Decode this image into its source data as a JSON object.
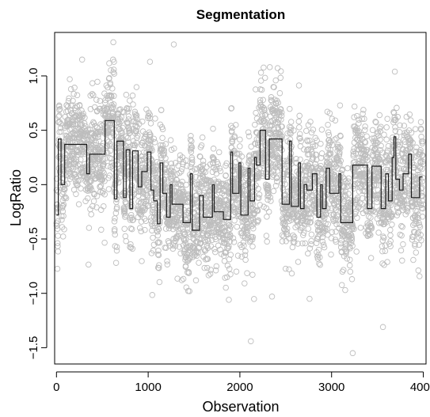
{
  "chart_data": {
    "type": "scatter",
    "title": "Segmentation",
    "xlabel": "Observation",
    "ylabel": "LogRatio",
    "xlim": [
      -20,
      4030
    ],
    "ylim": [
      -1.65,
      1.4
    ],
    "xticks": [
      0,
      1000,
      2000,
      3000,
      4000
    ],
    "yticks": [
      -1.5,
      -1.0,
      -0.5,
      0.0,
      0.5,
      1.0
    ],
    "xtick_labels": [
      "0",
      "1000",
      "2000",
      "3000",
      "4000"
    ],
    "ytick_labels": [
      "−1.5",
      "−1.0",
      "−0.5",
      "0.0",
      "0.5",
      "1.0"
    ],
    "grid": false,
    "point_color": "#bdbdbd",
    "segment_color": "#1a1a1a",
    "series": [
      {
        "type": "scatter",
        "n_points": 4000,
        "outliers": [
          {
            "x": 620,
            "y": 1.31
          },
          {
            "x": 1280,
            "y": 1.29
          },
          {
            "x": 1020,
            "y": 1.13
          },
          {
            "x": 2120,
            "y": -1.44
          },
          {
            "x": 3230,
            "y": -1.55
          },
          {
            "x": 3560,
            "y": -1.31
          },
          {
            "x": 2760,
            "y": -1.05
          },
          {
            "x": 1880,
            "y": -1.06
          },
          {
            "x": 3690,
            "y": 1.04
          },
          {
            "x": 2230,
            "y": 1.03
          },
          {
            "x": 280,
            "y": 1.15
          },
          {
            "x": 1450,
            "y": -0.98
          },
          {
            "x": 650,
            "y": -0.72
          },
          {
            "x": 2350,
            "y": -1.03
          }
        ]
      },
      {
        "type": "segments",
        "segments": [
          {
            "x0": 0,
            "x1": 20,
            "y": -0.28
          },
          {
            "x0": 20,
            "x1": 50,
            "y": 0.42
          },
          {
            "x0": 50,
            "x1": 90,
            "y": 0.0
          },
          {
            "x0": 90,
            "x1": 330,
            "y": 0.37
          },
          {
            "x0": 330,
            "x1": 360,
            "y": 0.1
          },
          {
            "x0": 360,
            "x1": 530,
            "y": 0.28
          },
          {
            "x0": 530,
            "x1": 630,
            "y": 0.59
          },
          {
            "x0": 630,
            "x1": 660,
            "y": -0.13
          },
          {
            "x0": 660,
            "x1": 730,
            "y": 0.4
          },
          {
            "x0": 730,
            "x1": 760,
            "y": -0.12
          },
          {
            "x0": 760,
            "x1": 800,
            "y": 0.32
          },
          {
            "x0": 800,
            "x1": 830,
            "y": -0.22
          },
          {
            "x0": 830,
            "x1": 890,
            "y": 0.31
          },
          {
            "x0": 890,
            "x1": 930,
            "y": -0.02
          },
          {
            "x0": 930,
            "x1": 990,
            "y": 0.12
          },
          {
            "x0": 990,
            "x1": 1030,
            "y": 0.3
          },
          {
            "x0": 1030,
            "x1": 1060,
            "y": -0.05
          },
          {
            "x0": 1060,
            "x1": 1100,
            "y": -0.15
          },
          {
            "x0": 1100,
            "x1": 1130,
            "y": -0.36
          },
          {
            "x0": 1130,
            "x1": 1160,
            "y": 0.2
          },
          {
            "x0": 1160,
            "x1": 1200,
            "y": -0.08
          },
          {
            "x0": 1200,
            "x1": 1240,
            "y": -0.3
          },
          {
            "x0": 1240,
            "x1": 1260,
            "y": 0.0
          },
          {
            "x0": 1260,
            "x1": 1380,
            "y": -0.18
          },
          {
            "x0": 1380,
            "x1": 1460,
            "y": -0.35
          },
          {
            "x0": 1460,
            "x1": 1480,
            "y": 0.1
          },
          {
            "x0": 1480,
            "x1": 1560,
            "y": -0.42
          },
          {
            "x0": 1560,
            "x1": 1600,
            "y": -0.1
          },
          {
            "x0": 1600,
            "x1": 1700,
            "y": -0.3
          },
          {
            "x0": 1700,
            "x1": 1720,
            "y": 0.0
          },
          {
            "x0": 1720,
            "x1": 1820,
            "y": -0.25
          },
          {
            "x0": 1820,
            "x1": 1900,
            "y": -0.32
          },
          {
            "x0": 1900,
            "x1": 1920,
            "y": 0.3
          },
          {
            "x0": 1920,
            "x1": 1990,
            "y": -0.08
          },
          {
            "x0": 1990,
            "x1": 2010,
            "y": 0.2
          },
          {
            "x0": 2010,
            "x1": 2090,
            "y": -0.28
          },
          {
            "x0": 2090,
            "x1": 2110,
            "y": 0.15
          },
          {
            "x0": 2110,
            "x1": 2160,
            "y": -0.15
          },
          {
            "x0": 2160,
            "x1": 2180,
            "y": 0.25
          },
          {
            "x0": 2180,
            "x1": 2220,
            "y": 0.18
          },
          {
            "x0": 2220,
            "x1": 2280,
            "y": 0.5
          },
          {
            "x0": 2280,
            "x1": 2320,
            "y": 0.05
          },
          {
            "x0": 2320,
            "x1": 2460,
            "y": 0.42
          },
          {
            "x0": 2460,
            "x1": 2540,
            "y": -0.18
          },
          {
            "x0": 2540,
            "x1": 2560,
            "y": 0.4
          },
          {
            "x0": 2560,
            "x1": 2640,
            "y": -0.2
          },
          {
            "x0": 2640,
            "x1": 2660,
            "y": 0.2
          },
          {
            "x0": 2660,
            "x1": 2700,
            "y": -0.22
          },
          {
            "x0": 2700,
            "x1": 2730,
            "y": 0.0
          },
          {
            "x0": 2730,
            "x1": 2790,
            "y": -0.05
          },
          {
            "x0": 2790,
            "x1": 2840,
            "y": 0.1
          },
          {
            "x0": 2840,
            "x1": 2880,
            "y": -0.3
          },
          {
            "x0": 2880,
            "x1": 2900,
            "y": 0.0
          },
          {
            "x0": 2900,
            "x1": 2940,
            "y": -0.22
          },
          {
            "x0": 2940,
            "x1": 2980,
            "y": 0.15
          },
          {
            "x0": 2980,
            "x1": 3080,
            "y": -0.08
          },
          {
            "x0": 3080,
            "x1": 3100,
            "y": 0.1
          },
          {
            "x0": 3100,
            "x1": 3230,
            "y": -0.35
          },
          {
            "x0": 3230,
            "x1": 3390,
            "y": 0.18
          },
          {
            "x0": 3390,
            "x1": 3440,
            "y": -0.22
          },
          {
            "x0": 3440,
            "x1": 3540,
            "y": 0.17
          },
          {
            "x0": 3540,
            "x1": 3590,
            "y": -0.22
          },
          {
            "x0": 3590,
            "x1": 3620,
            "y": 0.1
          },
          {
            "x0": 3620,
            "x1": 3660,
            "y": -0.15
          },
          {
            "x0": 3660,
            "x1": 3680,
            "y": 0.25
          },
          {
            "x0": 3680,
            "x1": 3700,
            "y": 0.44
          },
          {
            "x0": 3700,
            "x1": 3740,
            "y": 0.05
          },
          {
            "x0": 3740,
            "x1": 3780,
            "y": -0.05
          },
          {
            "x0": 3780,
            "x1": 3840,
            "y": 0.1
          },
          {
            "x0": 3840,
            "x1": 3870,
            "y": 0.28
          },
          {
            "x0": 3870,
            "x1": 3960,
            "y": -0.12
          },
          {
            "x0": 3960,
            "x1": 3990,
            "y": 0.07
          }
        ]
      }
    ]
  }
}
